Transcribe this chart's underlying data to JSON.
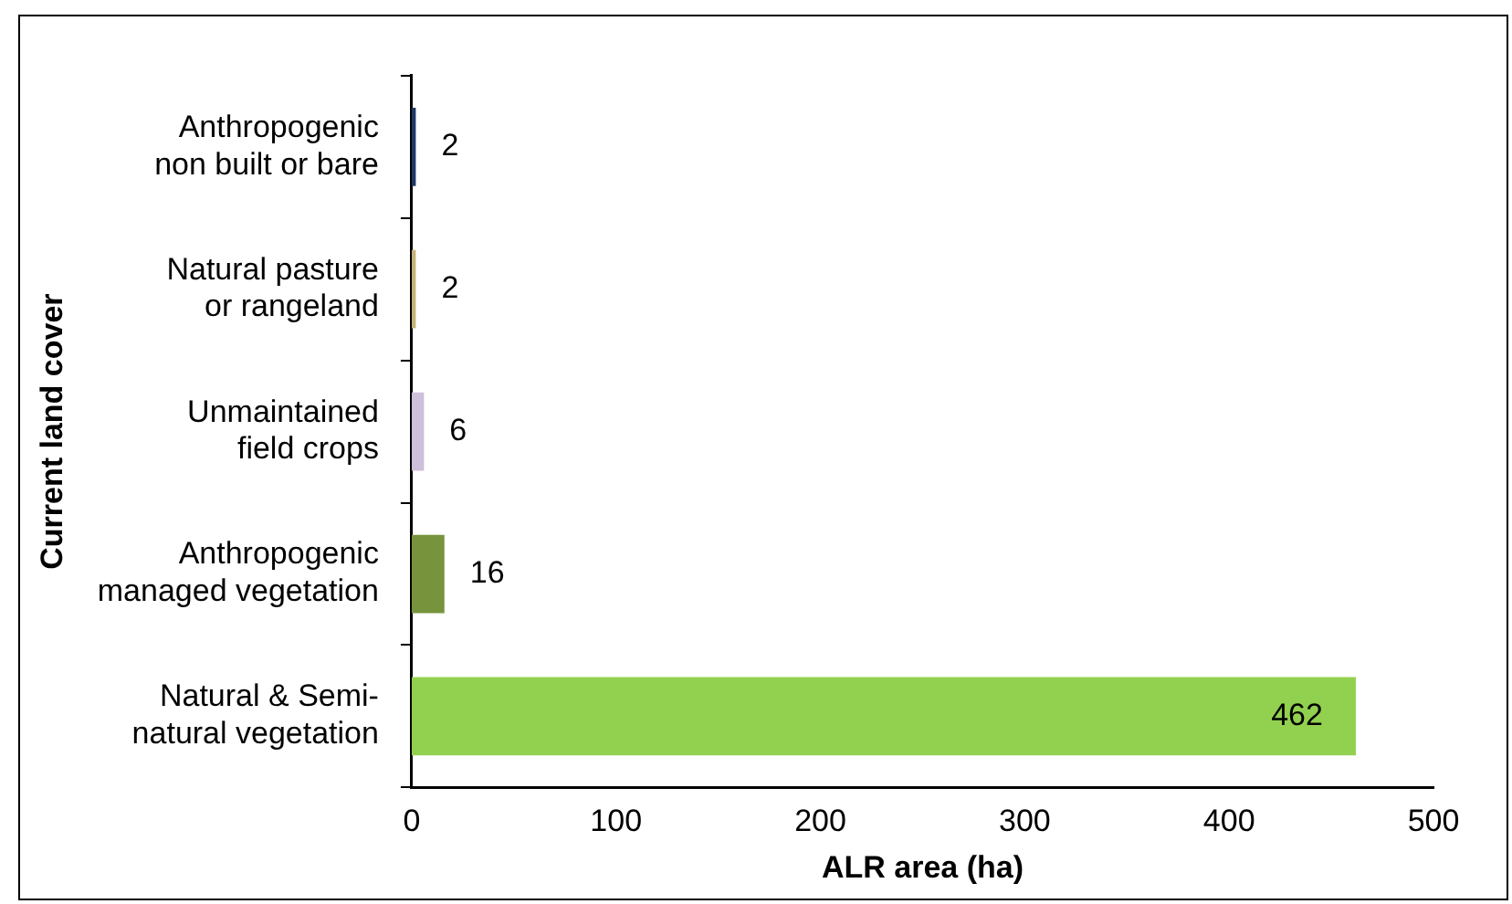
{
  "chart_data": {
    "type": "bar",
    "orientation": "horizontal",
    "categories": [
      "Anthropogenic non built or bare",
      "Natural pasture or rangeland",
      "Unmaintained field crops",
      "Anthropogenic managed vegetation",
      "Natural & Semi-natural vegetation"
    ],
    "values": [
      2,
      2,
      6,
      16,
      462
    ],
    "colors": [
      "#1f3864",
      "#c4b37a",
      "#ccc0da",
      "#77933c",
      "#92d050"
    ],
    "xlim": [
      0,
      500
    ],
    "xticks": [
      0,
      100,
      200,
      300,
      400,
      500
    ],
    "xlabel": "ALR area (ha)",
    "ylabel": "Current land cover",
    "data_labels": true,
    "grid": false,
    "legend": false
  }
}
